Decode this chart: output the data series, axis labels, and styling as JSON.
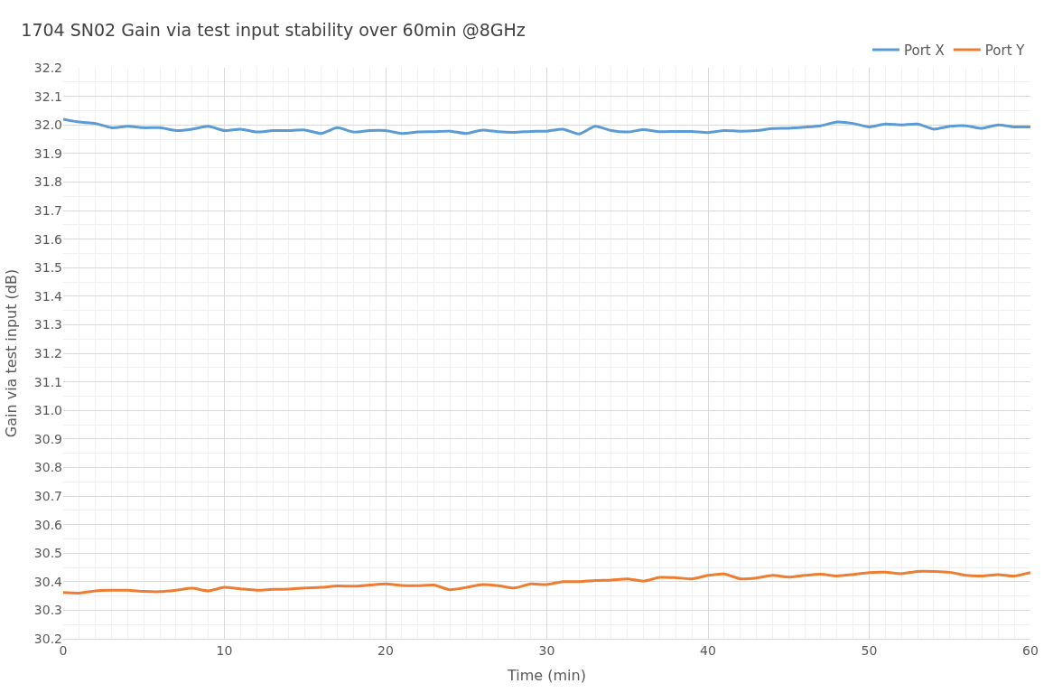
{
  "chart_data": {
    "type": "line",
    "title": "1704 SN02 Gain via test input stability over 60min @8GHz",
    "xlabel": "Time (min)",
    "ylabel": "Gain via test input (dB)",
    "x": [
      0,
      1,
      2,
      3,
      4,
      5,
      6,
      7,
      8,
      9,
      10,
      11,
      12,
      13,
      14,
      15,
      16,
      17,
      18,
      19,
      20,
      21,
      22,
      23,
      24,
      25,
      26,
      27,
      28,
      29,
      30,
      31,
      32,
      33,
      34,
      35,
      36,
      37,
      38,
      39,
      40,
      41,
      42,
      43,
      44,
      45,
      46,
      47,
      48,
      49,
      50,
      51,
      52,
      53,
      54,
      55,
      56,
      57,
      58,
      59,
      60
    ],
    "series": [
      {
        "name": "Port X",
        "color": "#5b9bd5",
        "values": [
          32.02,
          32.01,
          32.005,
          31.99,
          31.995,
          31.99,
          31.99,
          31.98,
          31.985,
          31.995,
          31.98,
          31.985,
          31.975,
          31.98,
          31.98,
          31.982,
          31.97,
          31.99,
          31.975,
          31.98,
          31.98,
          31.97,
          31.975,
          31.976,
          31.978,
          31.97,
          31.982,
          31.976,
          31.974,
          31.977,
          31.978,
          31.985,
          31.968,
          31.995,
          31.98,
          31.975,
          31.983,
          31.976,
          31.977,
          31.977,
          31.973,
          31.98,
          31.978,
          31.98,
          31.987,
          31.988,
          31.992,
          31.997,
          32.01,
          32.005,
          31.993,
          32.003,
          32.0,
          32.003,
          31.985,
          31.995,
          31.997,
          31.988,
          32.0,
          31.993,
          31.993
        ]
      },
      {
        "name": "Port Y",
        "color": "#ed7d31",
        "values": [
          30.362,
          30.36,
          30.368,
          30.37,
          30.37,
          30.366,
          30.365,
          30.37,
          30.377,
          30.368,
          30.38,
          30.375,
          30.37,
          30.373,
          30.374,
          30.378,
          30.38,
          30.385,
          30.384,
          30.388,
          30.392,
          30.387,
          30.386,
          30.388,
          30.372,
          30.38,
          30.39,
          30.386,
          30.378,
          30.392,
          30.39,
          30.4,
          30.4,
          30.404,
          30.406,
          30.41,
          30.402,
          30.415,
          30.414,
          30.41,
          30.422,
          30.427,
          30.41,
          30.413,
          30.422,
          30.416,
          30.422,
          30.426,
          30.42,
          30.425,
          30.432,
          30.433,
          30.428,
          30.436,
          30.436,
          30.433,
          30.422,
          30.42,
          30.425,
          30.42,
          30.432
        ]
      }
    ],
    "xlim": [
      0,
      60
    ],
    "xticks": [
      0,
      10,
      20,
      30,
      40,
      50,
      60
    ],
    "ylim": [
      30.2,
      32.2
    ],
    "yticks": [
      {
        "value": 30.2,
        "label": "30.2"
      },
      {
        "value": 30.3,
        "label": "30.3"
      },
      {
        "value": 30.4,
        "label": "30.4"
      },
      {
        "value": 30.5,
        "label": "30.5"
      },
      {
        "value": 30.6,
        "label": "30.6"
      },
      {
        "value": 30.7,
        "label": "30.7"
      },
      {
        "value": 30.8,
        "label": "30.8"
      },
      {
        "value": 30.9,
        "label": "30.9"
      },
      {
        "value": 31.0,
        "label": "31.0"
      },
      {
        "value": 31.1,
        "label": "31.1"
      },
      {
        "value": 31.2,
        "label": "31.2"
      },
      {
        "value": 31.3,
        "label": "31.3"
      },
      {
        "value": 31.4,
        "label": "31.4"
      },
      {
        "value": 31.5,
        "label": "31.5"
      },
      {
        "value": 31.6,
        "label": "31.6"
      },
      {
        "value": 31.7,
        "label": "31.7"
      },
      {
        "value": 31.8,
        "label": "31.8"
      },
      {
        "value": 31.9,
        "label": "31.9"
      },
      {
        "value": 32.0,
        "label": "32.0"
      },
      {
        "value": 32.1,
        "label": "32.1"
      },
      {
        "value": 32.2,
        "label": "32.2"
      }
    ],
    "grid": true,
    "legend": "top right",
    "marker": "none",
    "line_style": "solid"
  }
}
